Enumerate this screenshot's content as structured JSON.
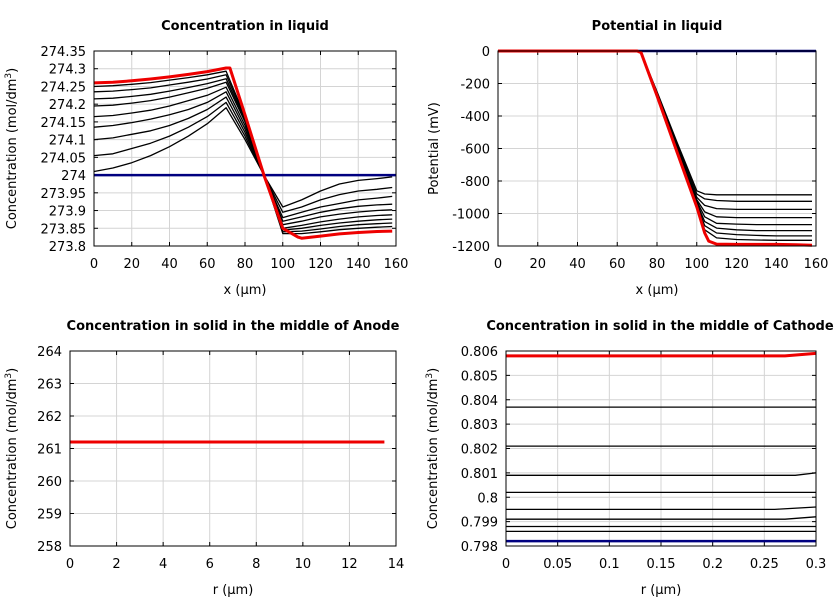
{
  "chart_data": [
    {
      "type": "line",
      "title": "Concentration in liquid",
      "xlabel": "x (µm)",
      "ylabel": "Concentration (mol/dm³)",
      "xlim": [
        0,
        160
      ],
      "ylim": [
        273.8,
        274.35
      ],
      "x_ticks": [
        "0",
        "20",
        "40",
        "60",
        "80",
        "100",
        "120",
        "140",
        "160"
      ],
      "y_ticks": [
        "273.8",
        "273.85",
        "273.9",
        "273.95",
        "274",
        "274.05",
        "274.1",
        "274.15",
        "274.2",
        "274.25",
        "274.3",
        "274.35"
      ],
      "grid": true,
      "series": [
        {
          "color": "#000080",
          "x": [
            0,
            160
          ],
          "y": [
            274.0,
            274.0
          ]
        },
        {
          "color": "#000000",
          "x": [
            0,
            10,
            20,
            30,
            40,
            50,
            60,
            70,
            80,
            90,
            100,
            110,
            120,
            130,
            140,
            150,
            158
          ],
          "y": [
            274.01,
            274.02,
            274.035,
            274.055,
            274.08,
            274.11,
            274.145,
            274.19,
            274.1,
            274.0,
            273.91,
            273.93,
            273.955,
            273.975,
            273.985,
            273.99,
            273.995
          ]
        },
        {
          "color": "#000000",
          "x": [
            0,
            10,
            20,
            30,
            40,
            50,
            60,
            70,
            80,
            90,
            100,
            110,
            120,
            130,
            140,
            150,
            158
          ],
          "y": [
            274.055,
            274.06,
            274.075,
            274.09,
            274.11,
            274.135,
            274.165,
            274.205,
            274.11,
            274.0,
            273.895,
            273.91,
            273.93,
            273.945,
            273.955,
            273.96,
            273.965
          ]
        },
        {
          "color": "#000000",
          "x": [
            0,
            10,
            20,
            30,
            40,
            50,
            60,
            70,
            80,
            90,
            100,
            110,
            120,
            130,
            140,
            150,
            158
          ],
          "y": [
            274.1,
            274.105,
            274.115,
            274.125,
            274.14,
            274.16,
            274.185,
            274.22,
            274.12,
            274.0,
            273.88,
            273.895,
            273.91,
            273.92,
            273.93,
            273.935,
            273.94
          ]
        },
        {
          "color": "#000000",
          "x": [
            0,
            10,
            20,
            30,
            40,
            50,
            60,
            70,
            80,
            90,
            100,
            110,
            120,
            130,
            140,
            150,
            158
          ],
          "y": [
            274.135,
            274.14,
            274.148,
            274.158,
            274.17,
            274.185,
            274.205,
            274.235,
            274.13,
            274.0,
            273.87,
            273.882,
            273.895,
            273.905,
            273.912,
            273.916,
            273.918
          ]
        },
        {
          "color": "#000000",
          "x": [
            0,
            10,
            20,
            30,
            40,
            50,
            60,
            70,
            80,
            90,
            100,
            110,
            120,
            130,
            140,
            150,
            158
          ],
          "y": [
            274.165,
            274.168,
            274.175,
            274.183,
            274.195,
            274.21,
            274.225,
            274.248,
            274.14,
            274.0,
            273.86,
            273.87,
            273.882,
            273.89,
            273.896,
            273.9,
            273.902
          ]
        },
        {
          "color": "#000000",
          "x": [
            0,
            10,
            20,
            30,
            40,
            50,
            60,
            70,
            80,
            90,
            100,
            110,
            120,
            130,
            140,
            150,
            158
          ],
          "y": [
            274.195,
            274.197,
            274.203,
            274.21,
            274.22,
            274.232,
            274.245,
            274.262,
            274.15,
            274.0,
            273.85,
            273.858,
            273.868,
            273.876,
            273.882,
            273.886,
            273.888
          ]
        },
        {
          "color": "#000000",
          "x": [
            0,
            10,
            20,
            30,
            40,
            50,
            60,
            70,
            80,
            90,
            100,
            110,
            120,
            130,
            140,
            150,
            158
          ],
          "y": [
            274.215,
            274.217,
            274.222,
            274.228,
            274.237,
            274.247,
            274.258,
            274.272,
            274.155,
            274.0,
            273.845,
            273.85,
            273.858,
            273.865,
            273.87,
            273.874,
            273.876
          ]
        },
        {
          "color": "#000000",
          "x": [
            0,
            10,
            20,
            30,
            40,
            50,
            60,
            70,
            80,
            90,
            100,
            110,
            120,
            130,
            140,
            150,
            158
          ],
          "y": [
            274.235,
            274.237,
            274.241,
            274.246,
            274.254,
            274.262,
            274.271,
            274.283,
            274.16,
            274.0,
            273.84,
            273.842,
            273.848,
            273.855,
            273.86,
            273.863,
            273.865
          ]
        },
        {
          "color": "#000000",
          "x": [
            0,
            10,
            20,
            30,
            40,
            50,
            60,
            70,
            80,
            90,
            100,
            110,
            120,
            130,
            140,
            150,
            158
          ],
          "y": [
            274.25,
            274.252,
            274.256,
            274.261,
            274.268,
            274.275,
            274.283,
            274.293,
            274.165,
            274.0,
            273.835,
            273.835,
            273.84,
            273.846,
            273.85,
            273.853,
            273.855
          ]
        },
        {
          "color": "#ee0000",
          "x": [
            0,
            10,
            20,
            30,
            40,
            50,
            60,
            70,
            72,
            80,
            90,
            100,
            108,
            110,
            120,
            130,
            140,
            150,
            158
          ],
          "y": [
            274.26,
            274.262,
            274.266,
            274.271,
            274.277,
            274.284,
            274.292,
            274.302,
            274.302,
            274.17,
            274.0,
            273.85,
            273.825,
            273.822,
            273.828,
            273.834,
            273.838,
            273.841,
            273.842
          ]
        }
      ]
    },
    {
      "type": "line",
      "title": "Potential in liquid",
      "xlabel": "x (µm)",
      "ylabel": "Potential (mV)",
      "xlim": [
        0,
        160
      ],
      "ylim": [
        -1200,
        0
      ],
      "x_ticks": [
        "0",
        "20",
        "40",
        "60",
        "80",
        "100",
        "120",
        "140",
        "160"
      ],
      "y_ticks": [
        "0",
        "-200",
        "-400",
        "-600",
        "-800",
        "-1000",
        "-1200"
      ],
      "grid": true,
      "series": [
        {
          "color": "#000080",
          "x": [
            0,
            160
          ],
          "y": [
            0,
            0
          ]
        },
        {
          "color": "#000000",
          "x": [
            0,
            70,
            72,
            80,
            90,
            100,
            104,
            110,
            120,
            130,
            140,
            150,
            158
          ],
          "y": [
            0,
            0,
            -10,
            -250,
            -560,
            -860,
            -880,
            -885,
            -885,
            -885,
            -885,
            -885,
            -885
          ]
        },
        {
          "color": "#000000",
          "x": [
            0,
            70,
            72,
            80,
            90,
            100,
            104,
            110,
            120,
            130,
            140,
            150,
            158
          ],
          "y": [
            0,
            0,
            -10,
            -255,
            -570,
            -880,
            -910,
            -920,
            -925,
            -925,
            -925,
            -925,
            -925
          ]
        },
        {
          "color": "#000000",
          "x": [
            0,
            70,
            72,
            80,
            90,
            100,
            104,
            110,
            120,
            130,
            140,
            150,
            158
          ],
          "y": [
            0,
            0,
            -10,
            -260,
            -580,
            -900,
            -950,
            -970,
            -975,
            -975,
            -975,
            -975,
            -975
          ]
        },
        {
          "color": "#000000",
          "x": [
            0,
            70,
            72,
            80,
            90,
            100,
            104,
            110,
            120,
            130,
            140,
            150,
            158
          ],
          "y": [
            0,
            0,
            -10,
            -263,
            -590,
            -915,
            -990,
            -1020,
            -1025,
            -1025,
            -1025,
            -1025,
            -1025
          ]
        },
        {
          "color": "#000000",
          "x": [
            0,
            70,
            72,
            80,
            90,
            100,
            104,
            110,
            120,
            130,
            140,
            150,
            158
          ],
          "y": [
            0,
            0,
            -10,
            -265,
            -595,
            -925,
            -1020,
            -1060,
            -1065,
            -1068,
            -1068,
            -1068,
            -1068
          ]
        },
        {
          "color": "#000000",
          "x": [
            0,
            70,
            72,
            80,
            90,
            100,
            104,
            110,
            120,
            130,
            140,
            150,
            158
          ],
          "y": [
            0,
            0,
            -10,
            -267,
            -600,
            -935,
            -1050,
            -1090,
            -1100,
            -1105,
            -1105,
            -1105,
            -1105
          ]
        },
        {
          "color": "#000000",
          "x": [
            0,
            70,
            72,
            80,
            90,
            100,
            104,
            110,
            120,
            130,
            140,
            150,
            158
          ],
          "y": [
            0,
            0,
            -10,
            -269,
            -605,
            -942,
            -1075,
            -1120,
            -1130,
            -1135,
            -1138,
            -1138,
            -1138
          ]
        },
        {
          "color": "#000000",
          "x": [
            0,
            70,
            72,
            80,
            90,
            100,
            104,
            110,
            120,
            130,
            140,
            150,
            158
          ],
          "y": [
            0,
            0,
            -10,
            -271,
            -610,
            -950,
            -1100,
            -1150,
            -1160,
            -1163,
            -1165,
            -1165,
            -1165
          ]
        },
        {
          "color": "#ee0000",
          "x": [
            0,
            70,
            72,
            80,
            90,
            100,
            104,
            106,
            110,
            120,
            130,
            140,
            150,
            158
          ],
          "y": [
            0,
            0,
            -10,
            -275,
            -620,
            -960,
            -1120,
            -1170,
            -1188,
            -1190,
            -1190,
            -1190,
            -1192,
            -1195
          ]
        }
      ]
    },
    {
      "type": "line",
      "title": "Concentration in solid in the middle of Anode",
      "xlabel": "r (µm)",
      "ylabel": "Concentration (mol/dm³)",
      "xlim": [
        0,
        14
      ],
      "ylim": [
        258,
        264
      ],
      "x_ticks": [
        "0",
        "2",
        "4",
        "6",
        "8",
        "10",
        "12",
        "14"
      ],
      "y_ticks": [
        "258",
        "259",
        "260",
        "261",
        "262",
        "263",
        "264"
      ],
      "grid": true,
      "series": [
        {
          "color": "#ee0000",
          "x": [
            0,
            13.5
          ],
          "y": [
            261.2,
            261.2
          ]
        }
      ]
    },
    {
      "type": "line",
      "title": "Concentration in solid in the middle of Cathode",
      "xlabel": "r (µm)",
      "ylabel": "Concentration (mol/dm³)",
      "xlim": [
        0,
        0.3
      ],
      "ylim": [
        0.798,
        0.806
      ],
      "x_ticks": [
        "0",
        "0.05",
        "0.1",
        "0.15",
        "0.2",
        "0.25",
        "0.3"
      ],
      "y_ticks": [
        "0.798",
        "0.799",
        "0.8",
        "0.801",
        "0.802",
        "0.803",
        "0.804",
        "0.805",
        "0.806"
      ],
      "grid": true,
      "series": [
        {
          "color": "#000080",
          "x": [
            0,
            0.3
          ],
          "y": [
            0.7982,
            0.7982
          ]
        },
        {
          "color": "#000000",
          "x": [
            0,
            0.3
          ],
          "y": [
            0.7986,
            0.7986
          ]
        },
        {
          "color": "#000000",
          "x": [
            0,
            0.3
          ],
          "y": [
            0.7988,
            0.7988
          ]
        },
        {
          "color": "#000000",
          "x": [
            0,
            0.27,
            0.3
          ],
          "y": [
            0.7991,
            0.7991,
            0.7992
          ]
        },
        {
          "color": "#000000",
          "x": [
            0,
            0.26,
            0.3
          ],
          "y": [
            0.7995,
            0.7995,
            0.7996
          ]
        },
        {
          "color": "#000000",
          "x": [
            0,
            0.3
          ],
          "y": [
            0.8002,
            0.8002
          ]
        },
        {
          "color": "#000000",
          "x": [
            0,
            0.28,
            0.3
          ],
          "y": [
            0.8009,
            0.8009,
            0.801
          ]
        },
        {
          "color": "#000000",
          "x": [
            0,
            0.3
          ],
          "y": [
            0.8021,
            0.8021
          ]
        },
        {
          "color": "#000000",
          "x": [
            0,
            0.3
          ],
          "y": [
            0.8037,
            0.8037
          ]
        },
        {
          "color": "#ee0000",
          "x": [
            0,
            0.27,
            0.3
          ],
          "y": [
            0.8058,
            0.8058,
            0.8059
          ]
        }
      ]
    }
  ]
}
